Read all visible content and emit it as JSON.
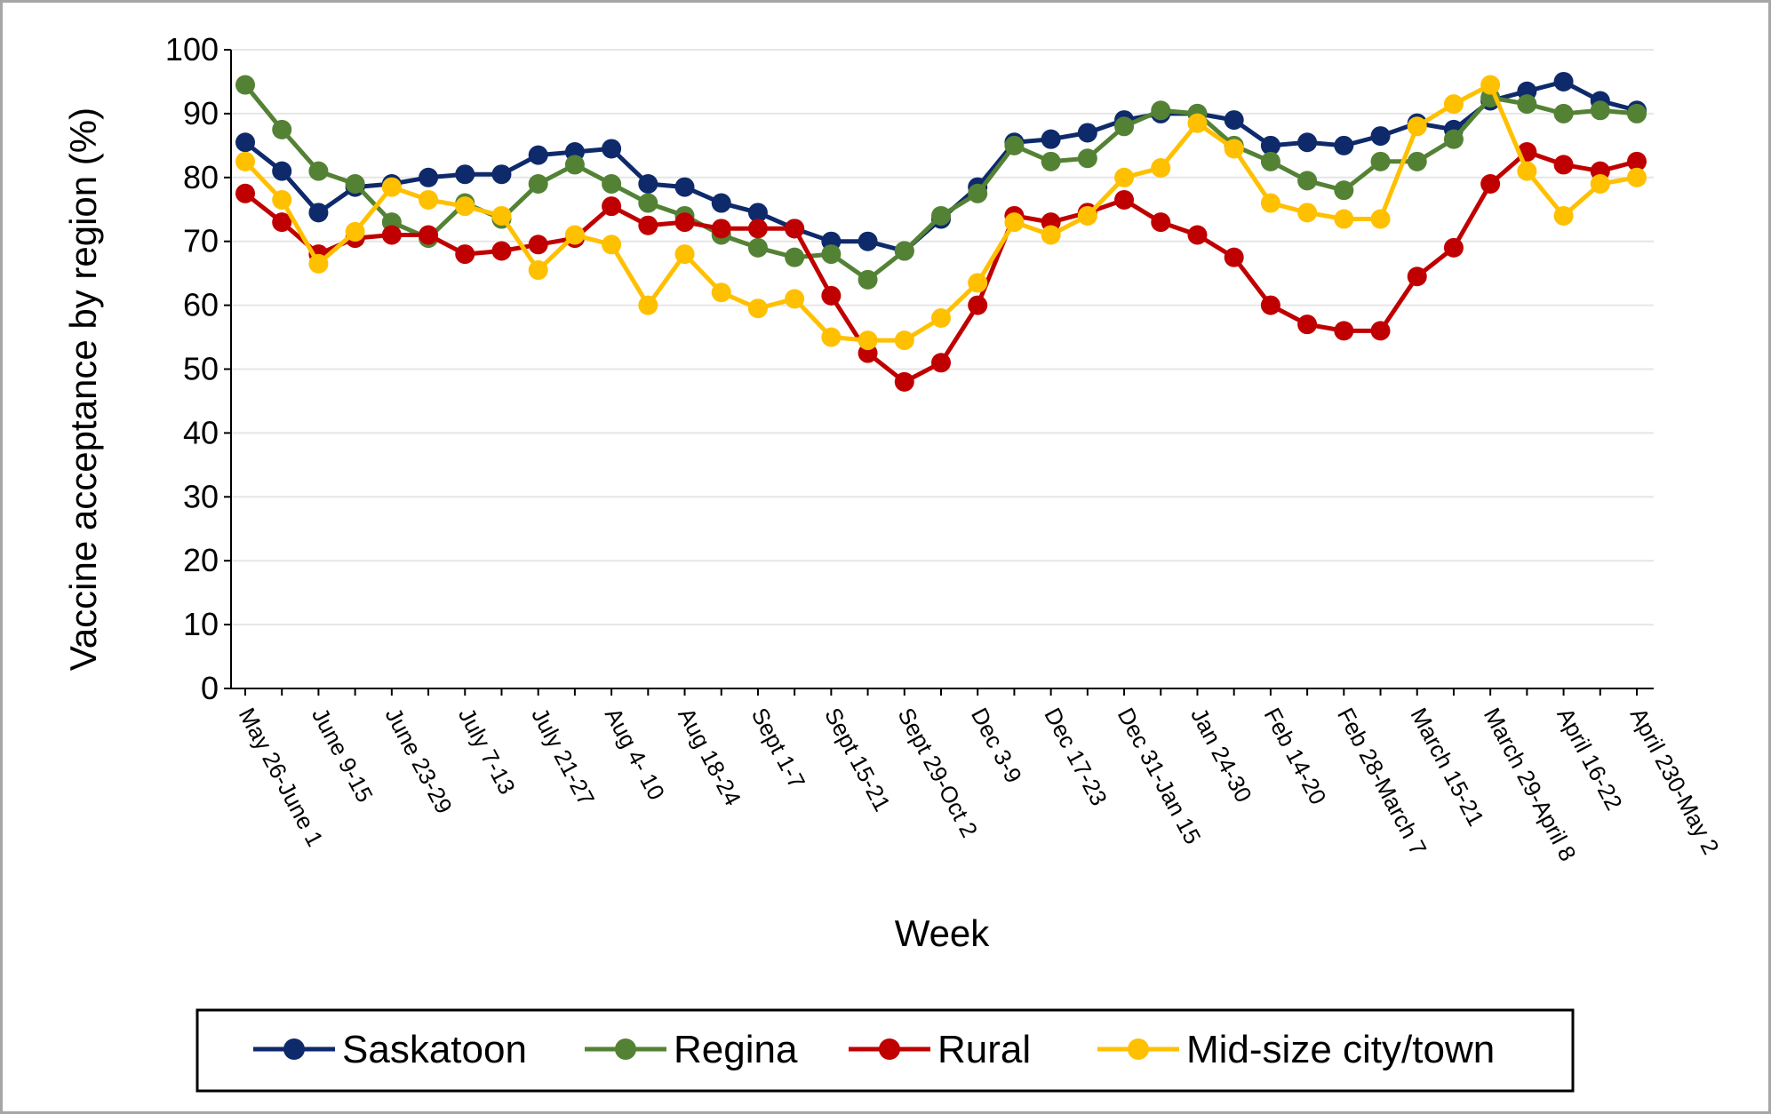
{
  "chart_data": {
    "type": "line",
    "title": "",
    "xlabel": "Week",
    "ylabel": "Vaccine acceptance by region (%)",
    "ylim": [
      0,
      100
    ],
    "yticks": [
      0,
      10,
      20,
      30,
      40,
      50,
      60,
      70,
      80,
      90,
      100
    ],
    "grid": "horizontal",
    "legend_position": "bottom",
    "categories": [
      "May 26-June 1",
      "",
      "June 9-15",
      "",
      "June 23-29",
      "",
      "July 7-13",
      "",
      "July 21-27",
      "",
      "Aug 4- 10",
      "",
      "Aug 18-24",
      "",
      "Sept 1-7",
      "",
      "Sept 15-21",
      "",
      "Sept 29-Oct 2",
      "",
      "Dec 3-9",
      "",
      "Dec 17-23",
      "",
      "Dec 31-Jan 15",
      "",
      "Jan 24-30",
      "",
      "Feb 14-20",
      "",
      "Feb 28-March 7",
      "",
      "March 15-21",
      "",
      "March 29-April 8",
      "",
      "April 16-22",
      "",
      "April 230-May 2"
    ],
    "series": [
      {
        "name": "Saskatoon",
        "color": "#0e2a6b",
        "values": [
          85.5,
          81,
          74.5,
          78.5,
          79,
          80,
          80.5,
          80.5,
          83.5,
          84,
          84.5,
          79,
          78.5,
          76,
          74.5,
          72,
          70,
          70,
          68.5,
          73.5,
          78.5,
          85.5,
          86,
          87,
          89,
          90,
          90,
          89,
          85,
          85.5,
          85,
          86.5,
          88.5,
          87.5,
          92,
          93.5,
          95,
          92,
          90.5
        ]
      },
      {
        "name": "Regina",
        "color": "#548235",
        "values": [
          94.5,
          87.5,
          81,
          79,
          73,
          70.5,
          76,
          73.5,
          79,
          82,
          79,
          76,
          74,
          71,
          69,
          67.5,
          68,
          64,
          68.5,
          74,
          77.5,
          85,
          82.5,
          83,
          88,
          90.5,
          90,
          85,
          82.5,
          79.5,
          78,
          82.5,
          82.5,
          86,
          92.5,
          91.5,
          90,
          90.5,
          90
        ]
      },
      {
        "name": "Rural",
        "color": "#c00000",
        "values": [
          77.5,
          73,
          68,
          70.5,
          71,
          71,
          68,
          68.5,
          69.5,
          70.5,
          75.5,
          72.5,
          73,
          72,
          72,
          72,
          61.5,
          52.5,
          48,
          51,
          60,
          74,
          73,
          74.5,
          76.5,
          73,
          71,
          67.5,
          60,
          57,
          56,
          56,
          64.5,
          69,
          79,
          84,
          82,
          81,
          82.5
        ]
      },
      {
        "name": "Mid-size city/town",
        "color": "#ffc000",
        "values": [
          82.5,
          76.5,
          66.5,
          71.5,
          78.5,
          76.5,
          75.5,
          74,
          65.5,
          71,
          69.5,
          60,
          68,
          62,
          59.5,
          61,
          55,
          54.5,
          54.5,
          58,
          63.5,
          73,
          71,
          74,
          80,
          81.5,
          88.5,
          84.5,
          76,
          74.5,
          73.5,
          73.5,
          88,
          91.5,
          94.5,
          81,
          74,
          79,
          80
        ]
      }
    ]
  }
}
